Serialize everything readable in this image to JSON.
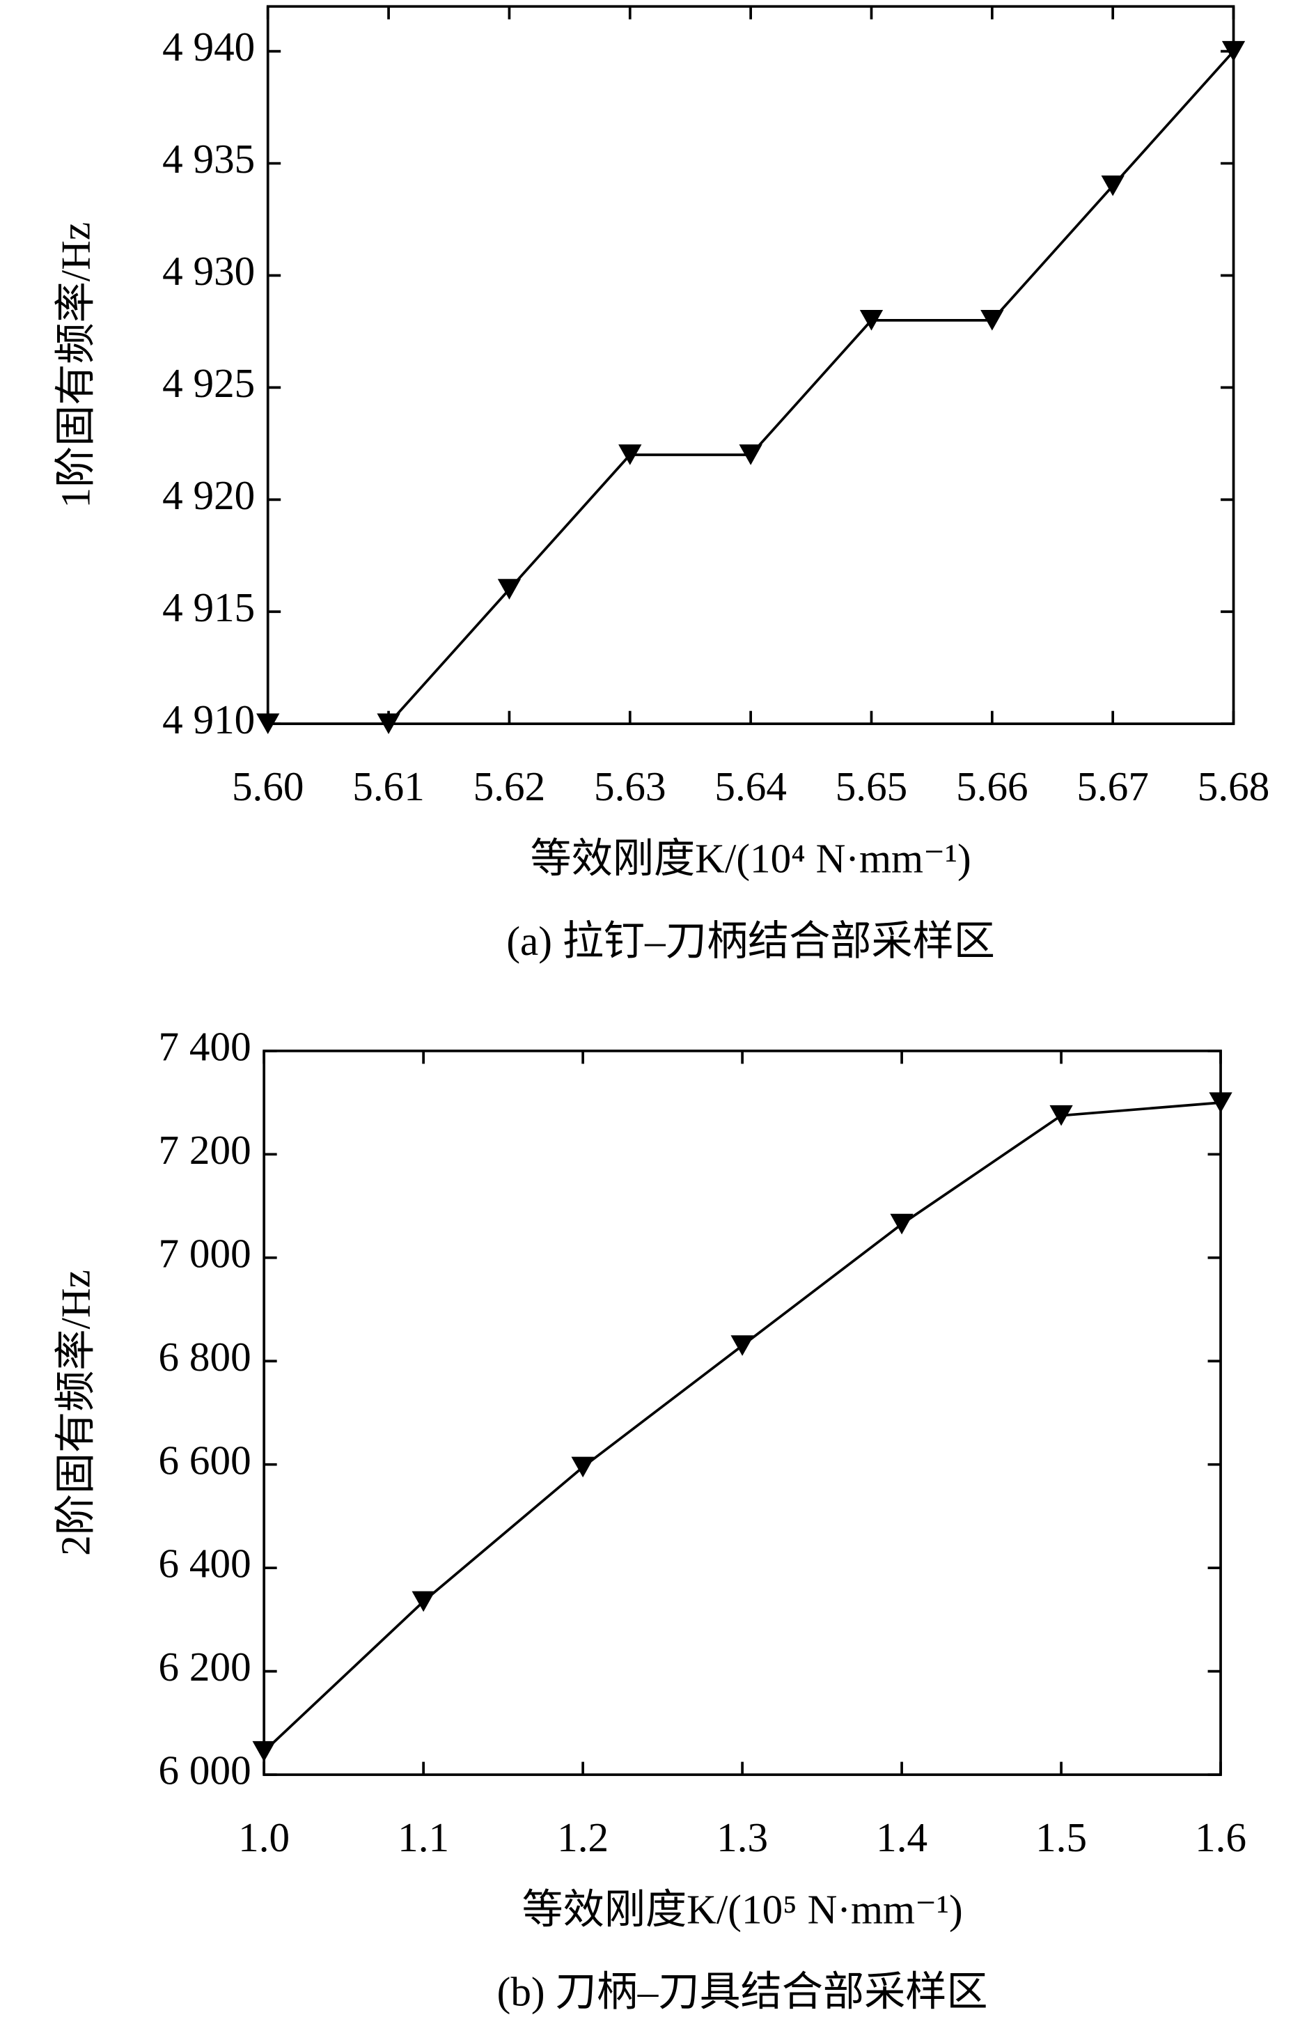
{
  "chart_data": [
    {
      "type": "line",
      "x_label": "等效刚度K/(10⁴ N·mm⁻¹)",
      "y_label": "1阶固有频率/Hz",
      "caption": "(a) 拉钉–刀柄结合部采样区",
      "x": [
        5.6,
        5.61,
        5.62,
        5.63,
        5.64,
        5.65,
        5.66,
        5.67,
        5.68
      ],
      "series": [
        {
          "color": "#000000",
          "values": [
            4910,
            4910,
            4916,
            4922,
            4922,
            4928,
            4928,
            4934,
            4940
          ]
        }
      ],
      "xlim": [
        5.6,
        5.68
      ],
      "xticks": [
        {
          "value": 5.6,
          "label": "5.60"
        },
        5.61,
        5.62,
        5.63,
        5.64,
        5.65,
        5.66,
        5.67,
        5.68
      ],
      "ylim": [
        4910,
        4942
      ],
      "yticks": [
        {
          "value": 4910,
          "label": "4 910"
        },
        {
          "value": 4915,
          "label": "4 915"
        },
        {
          "value": 4920,
          "label": "4 920"
        },
        {
          "value": 4925,
          "label": "4 925"
        },
        {
          "value": 4930,
          "label": "4 930"
        },
        {
          "value": 4935,
          "label": "4 935"
        },
        {
          "value": 4940,
          "label": "4 940"
        }
      ]
    },
    {
      "type": "line",
      "x_label": "等效刚度K/(10⁵ N·mm⁻¹)",
      "y_label": "2阶固有频率/Hz",
      "caption": "(b) 刀柄–刀具结合部采样区",
      "x": [
        1.0,
        1.1,
        1.2,
        1.3,
        1.4,
        1.5,
        1.6
      ],
      "series": [
        {
          "color": "#000000",
          "values": [
            6045,
            6335,
            6595,
            6830,
            7065,
            7275,
            7300
          ]
        }
      ],
      "xlim": [
        1.0,
        1.6
      ],
      "xticks": [
        {
          "value": 1.0,
          "label": "1.0"
        },
        1.1,
        1.2,
        1.3,
        1.4,
        1.5,
        1.6
      ],
      "ylim": [
        6000,
        7400
      ],
      "yticks": [
        {
          "value": 6000,
          "label": "6 000"
        },
        {
          "value": 6200,
          "label": "6 200"
        },
        {
          "value": 6400,
          "label": "6 400"
        },
        {
          "value": 6600,
          "label": "6 600"
        },
        {
          "value": 6800,
          "label": "6 800"
        },
        {
          "value": 7000,
          "label": "7 000"
        },
        {
          "value": 7200,
          "label": "7 200"
        },
        {
          "value": 7400,
          "label": "7 400"
        }
      ]
    }
  ]
}
